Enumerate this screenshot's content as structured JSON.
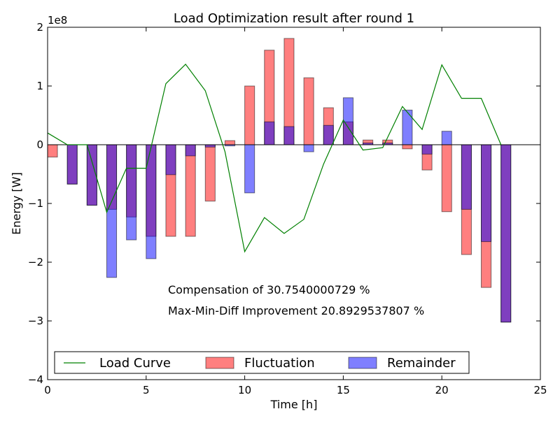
{
  "chart_data": {
    "type": "bar",
    "title": "Load Optimization result after round 1",
    "xlabel": "Time [h]",
    "ylabel": "Energy [W]",
    "y_offset_label": "1e8",
    "y_scale": 100000000,
    "xlim": [
      0,
      25
    ],
    "ylim": [
      -4,
      2
    ],
    "x_ticks": [
      0,
      5,
      10,
      15,
      20,
      25
    ],
    "y_ticks": [
      -4,
      -3,
      -2,
      -1,
      0,
      1,
      2
    ],
    "grid": false,
    "legend_position": "bottom",
    "colors": {
      "load_curve": "#008000",
      "fluctuation": "#ff0000",
      "remainder": "#0000ff",
      "overlap": "#7f3fbf"
    },
    "annotations": [
      "Compensation of 30.7540000729 %",
      "Max-Min-Diff Improvement 20.8929537807 %"
    ],
    "legend": [
      {
        "key": "load_curve",
        "label": "Load Curve",
        "style": "line"
      },
      {
        "key": "fluctuation",
        "label": "Fluctuation",
        "style": "patch"
      },
      {
        "key": "remainder",
        "label": "Remainder",
        "style": "patch"
      }
    ],
    "x": [
      0,
      1,
      2,
      3,
      4,
      5,
      6,
      7,
      8,
      9,
      10,
      11,
      12,
      13,
      14,
      15,
      16,
      17,
      18,
      19,
      20,
      21,
      22,
      23
    ],
    "series": [
      {
        "name": "Load Curve",
        "type": "line",
        "values": [
          0.2,
          0.0,
          0.0,
          -1.15,
          -0.4,
          -0.4,
          1.04,
          1.37,
          0.92,
          -0.12,
          -1.82,
          -1.24,
          -1.51,
          -1.27,
          -0.33,
          0.42,
          -0.09,
          -0.05,
          0.65,
          0.26,
          1.36,
          0.79,
          0.79,
          0.0
        ]
      },
      {
        "name": "Fluctuation",
        "type": "bar",
        "values": [
          -0.21,
          -0.67,
          -1.03,
          -1.1,
          -1.23,
          -1.56,
          -1.56,
          -1.56,
          -0.96,
          0.07,
          1.0,
          1.61,
          1.81,
          1.14,
          0.63,
          0.39,
          0.08,
          0.08,
          -0.07,
          -0.43,
          -1.14,
          -1.87,
          -2.43,
          -3.02
        ]
      },
      {
        "name": "Remainder",
        "type": "bar",
        "values": [
          0.0,
          -0.67,
          -1.03,
          -2.26,
          -1.62,
          -1.94,
          -0.51,
          -0.19,
          -0.04,
          -0.02,
          -0.82,
          0.39,
          0.31,
          -0.12,
          0.33,
          0.8,
          0.03,
          0.03,
          0.59,
          -0.16,
          0.23,
          -1.1,
          -1.65,
          -3.02
        ]
      }
    ]
  }
}
